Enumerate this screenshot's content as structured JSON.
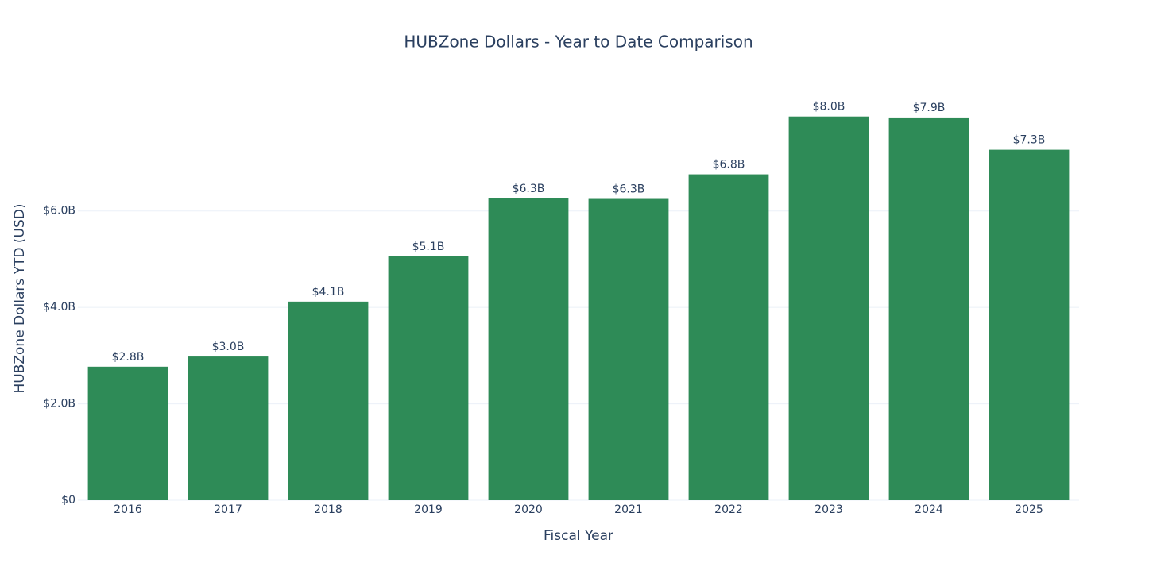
{
  "chart_data": {
    "type": "bar",
    "title": "HUBZone Dollars - Year to Date Comparison",
    "x_label": "Fiscal Year",
    "y_label": "HUBZone Dollars YTD (USD)",
    "categories": [
      "2016",
      "2017",
      "2018",
      "2019",
      "2020",
      "2021",
      "2022",
      "2023",
      "2024",
      "2025"
    ],
    "values": [
      2770000000,
      2980000000,
      4120000000,
      5060000000,
      6260000000,
      6250000000,
      6760000000,
      7960000000,
      7940000000,
      7270000000
    ],
    "value_labels": [
      "$2.8B",
      "$3.0B",
      "$4.1B",
      "$5.1B",
      "$6.3B",
      "$6.3B",
      "$6.8B",
      "$8.0B",
      "$7.9B",
      "$7.3B"
    ],
    "color": "#2e8b57",
    "ylim": [
      0,
      8400000000
    ],
    "yticks": [
      {
        "value": 0,
        "label": "$0"
      },
      {
        "value": 2000000000,
        "label": "$2.0B"
      },
      {
        "value": 4000000000,
        "label": "$4.0B"
      },
      {
        "value": 6000000000,
        "label": "$6.0B"
      }
    ],
    "grid": true
  }
}
